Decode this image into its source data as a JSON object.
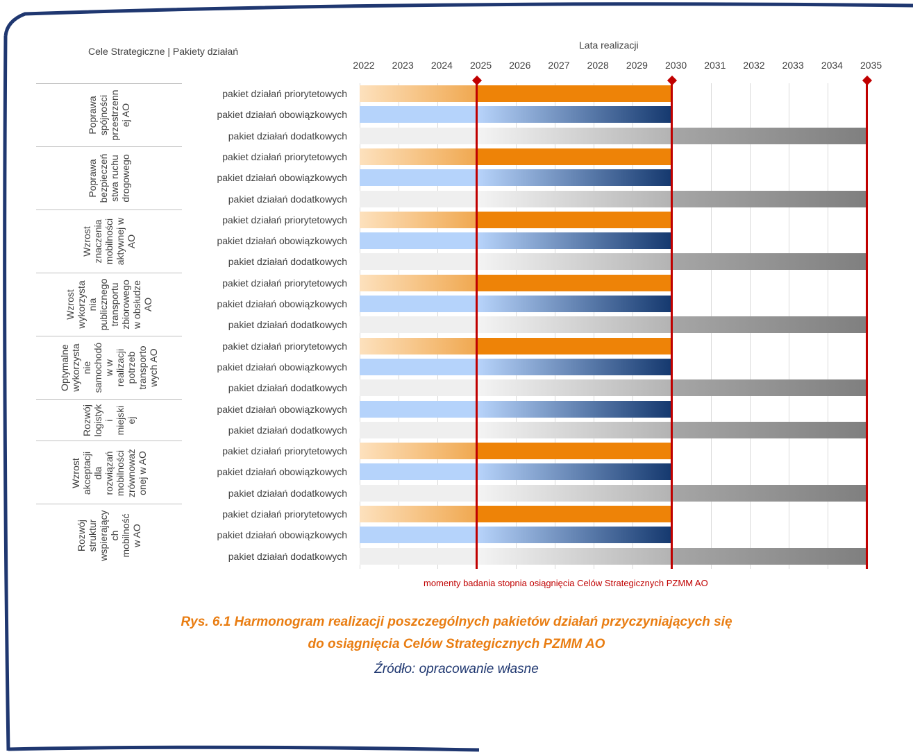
{
  "header": {
    "left_label": "Cele Strategiczne   |   Pakiety działań",
    "years_title": "Lata realizacji"
  },
  "colors": {
    "frame": "#1f3770",
    "priorytetowe": "#ee8307",
    "obowiazkowe": "#14386e",
    "dodatkowe": "#7f7f7f",
    "milestone": "#c00000",
    "caption": "#e97d12",
    "source": "#1f3770"
  },
  "chart_data": {
    "type": "gantt",
    "title": "Lata realizacji",
    "x": [
      "2022",
      "2023",
      "2024",
      "2025",
      "2026",
      "2027",
      "2028",
      "2029",
      "2030",
      "2031",
      "2032",
      "2033",
      "2034",
      "2035"
    ],
    "xlim": [
      2022,
      2035
    ],
    "grid": true,
    "milestones": [
      2025,
      2030,
      2035
    ],
    "milestone_label": "momenty badania stopnia osiągnięcia Celów Strategicznych PZMM AO",
    "package_labels": {
      "prio": "pakiet działań priorytetowych",
      "oblig": "pakiet działań obowiązkowych",
      "extra": "pakiet działań dodatkowych"
    },
    "goals": [
      {
        "name": "Poprawa spójności przestrzenn ej AO",
        "lines": [
          "Poprawa",
          "spójności",
          "przestrzenn",
          "ej AO"
        ],
        "packages": [
          {
            "key": "prio",
            "start": 2022,
            "end": 2030
          },
          {
            "key": "oblig",
            "start": 2022,
            "end": 2030
          },
          {
            "key": "extra",
            "start": 2022,
            "end": 2035
          }
        ]
      },
      {
        "name": "Poprawa bezpieczeń stwa ruchu drogowego",
        "lines": [
          "Poprawa",
          "bezpieczeń",
          "stwa ruchu",
          "drogowego"
        ],
        "packages": [
          {
            "key": "prio",
            "start": 2022,
            "end": 2030
          },
          {
            "key": "oblig",
            "start": 2022,
            "end": 2030
          },
          {
            "key": "extra",
            "start": 2022,
            "end": 2035
          }
        ]
      },
      {
        "name": "Wzrost znaczenia mobilności aktywnej w AO",
        "lines": [
          "Wzrost",
          "znaczenia",
          "mobilności",
          "aktywnej w",
          "AO"
        ],
        "packages": [
          {
            "key": "prio",
            "start": 2022,
            "end": 2030
          },
          {
            "key": "oblig",
            "start": 2022,
            "end": 2030
          },
          {
            "key": "extra",
            "start": 2022,
            "end": 2035
          }
        ]
      },
      {
        "name": "Wzrost wykorzysta nia publicznego transportu zbiorowego w obsłudze AO",
        "lines": [
          "Wzrost",
          "wykorzysta",
          "nia",
          "publicznego",
          "transportu",
          "zbiorowego",
          "w obsłudze",
          "AO"
        ],
        "packages": [
          {
            "key": "prio",
            "start": 2022,
            "end": 2030
          },
          {
            "key": "oblig",
            "start": 2022,
            "end": 2030
          },
          {
            "key": "extra",
            "start": 2022,
            "end": 2035
          }
        ]
      },
      {
        "name": "Optymalne wykorzysta nie samochodó w w realizacji potrzeb transporto wych AO",
        "lines": [
          "Optymalne",
          "wykorzysta",
          "nie",
          "samochodó",
          "w w",
          "realizacji",
          "potrzeb",
          "transporto",
          "wych AO"
        ],
        "packages": [
          {
            "key": "prio",
            "start": 2022,
            "end": 2030
          },
          {
            "key": "oblig",
            "start": 2022,
            "end": 2030
          },
          {
            "key": "extra",
            "start": 2022,
            "end": 2035
          }
        ]
      },
      {
        "name": "Rozwój logistyk i miejski ej",
        "lines": [
          "Rozwój",
          "logistyk",
          "i",
          "miejski",
          "ej"
        ],
        "packages": [
          {
            "key": "oblig",
            "start": 2022,
            "end": 2030
          },
          {
            "key": "extra",
            "start": 2022,
            "end": 2035
          }
        ]
      },
      {
        "name": "Wzrost akceptacji dla rozwiązań mobilności zrównoważ onej w AO",
        "lines": [
          "Wzrost",
          "akceptacji",
          "dla",
          "rozwiązań",
          "mobilności",
          "zrównoważ",
          "onej w AO"
        ],
        "packages": [
          {
            "key": "prio",
            "start": 2022,
            "end": 2030
          },
          {
            "key": "oblig",
            "start": 2022,
            "end": 2030
          },
          {
            "key": "extra",
            "start": 2022,
            "end": 2035
          }
        ]
      },
      {
        "name": "Rozwój struktur wspierający ch mobilność w AO",
        "lines": [
          "Rozwój",
          "struktur",
          "wspierający",
          "ch",
          "mobilność",
          "w AO"
        ],
        "packages": [
          {
            "key": "prio",
            "start": 2022,
            "end": 2030
          },
          {
            "key": "oblig",
            "start": 2022,
            "end": 2030
          },
          {
            "key": "extra",
            "start": 2022,
            "end": 2035
          }
        ]
      }
    ]
  },
  "caption": {
    "line1": "Rys. 6.1 Harmonogram realizacji poszczególnych pakietów działań przyczyniających się",
    "line2": "do osiągnięcia Celów Strategicznych PZMM AO",
    "source": "Źródło: opracowanie własne"
  }
}
